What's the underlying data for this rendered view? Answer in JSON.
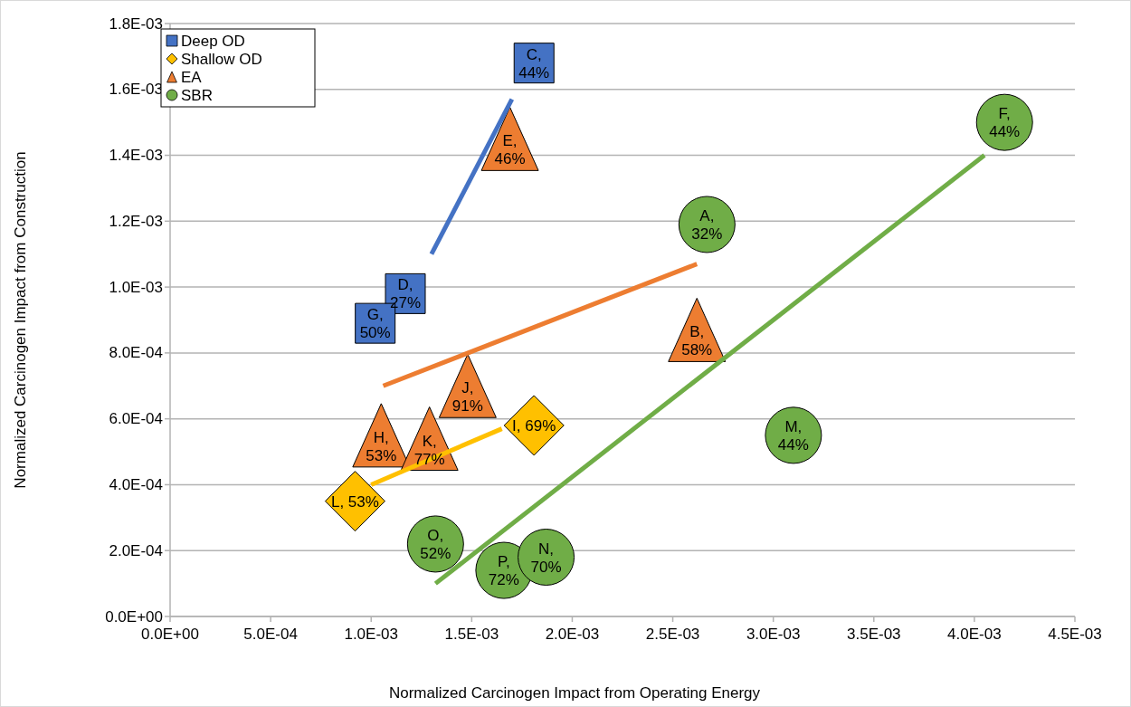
{
  "chart_data": {
    "type": "scatter",
    "xlabel": "Normalized Carcinogen Impact from Operating Energy",
    "ylabel": "Normalized Carcinogen Impact from Construction",
    "xlim": [
      0,
      0.0045
    ],
    "ylim": [
      0,
      0.0018
    ],
    "xticks": [
      {
        "value": 0,
        "label": "0.0E+00"
      },
      {
        "value": 0.0005,
        "label": "5.0E-04"
      },
      {
        "value": 0.001,
        "label": "1.0E-03"
      },
      {
        "value": 0.0015,
        "label": "1.5E-03"
      },
      {
        "value": 0.002,
        "label": "2.0E-03"
      },
      {
        "value": 0.0025,
        "label": "2.5E-03"
      },
      {
        "value": 0.003,
        "label": "3.0E-03"
      },
      {
        "value": 0.0035,
        "label": "3.5E-03"
      },
      {
        "value": 0.004,
        "label": "4.0E-03"
      },
      {
        "value": 0.0045,
        "label": "4.5E-03"
      }
    ],
    "yticks": [
      {
        "value": 0,
        "label": "0.0E+00"
      },
      {
        "value": 0.0002,
        "label": "2.0E-04"
      },
      {
        "value": 0.0004,
        "label": "4.0E-04"
      },
      {
        "value": 0.0006,
        "label": "6.0E-04"
      },
      {
        "value": 0.0008,
        "label": "8.0E-04"
      },
      {
        "value": 0.001,
        "label": "1.0E-03"
      },
      {
        "value": 0.0012,
        "label": "1.2E-03"
      },
      {
        "value": 0.0014,
        "label": "1.4E-03"
      },
      {
        "value": 0.0016,
        "label": "1.6E-03"
      },
      {
        "value": 0.0018,
        "label": "1.8E-03"
      }
    ],
    "grid": "y",
    "legend": "top left",
    "series": [
      {
        "type": "line",
        "color": "#4472c4",
        "x": [
          0.0013,
          0.0017
        ],
        "values": [
          0.0011,
          0.00157
        ]
      },
      {
        "type": "line",
        "color": "#ed7d31",
        "x": [
          0.00106,
          0.00262
        ],
        "values": [
          0.0007,
          0.00107
        ]
      },
      {
        "type": "line",
        "color": "#ffc000",
        "x": [
          0.001,
          0.00165
        ],
        "values": [
          0.0004,
          0.00057
        ]
      },
      {
        "type": "line",
        "color": "#70ad47",
        "x": [
          0.00132,
          0.00405
        ],
        "values": [
          0.0001,
          0.0014
        ]
      },
      {
        "name": "Deep OD",
        "marker": "square",
        "color": "#4472c4",
        "x": [
          0.00181,
          0.00117,
          0.00102
        ],
        "values": [
          0.00168,
          0.00098,
          0.00089
        ]
      },
      {
        "name": "Shallow OD",
        "marker": "diamond",
        "color": "#ffc000",
        "x": [
          0.00181,
          0.00092
        ],
        "values": [
          0.00058,
          0.00035
        ]
      },
      {
        "name": "EA",
        "marker": "triangle",
        "color": "#ed7d31",
        "x": [
          0.00169,
          0.00262,
          0.00148,
          0.00105,
          0.00129
        ],
        "values": [
          0.00145,
          0.00087,
          0.0007,
          0.00055,
          0.00054
        ]
      },
      {
        "name": "SBR",
        "marker": "circle",
        "color": "#70ad47",
        "x": [
          0.00415,
          0.00267,
          0.0031,
          0.00132,
          0.00166,
          0.00187
        ],
        "values": [
          0.0015,
          0.00119,
          0.00055,
          0.00022,
          0.00014,
          0.00018
        ]
      }
    ],
    "annotations": [
      {
        "text": "C,\n44%",
        "x": 0.00181,
        "y": 0.00168
      },
      {
        "text": "D,\n27%",
        "x": 0.00117,
        "y": 0.00098
      },
      {
        "text": "G,\n50%",
        "x": 0.00102,
        "y": 0.00089
      },
      {
        "text": "I, 69%",
        "x": 0.00181,
        "y": 0.00058
      },
      {
        "text": "L, 53%",
        "x": 0.00092,
        "y": 0.00035
      },
      {
        "text": "E,\n46%",
        "x": 0.00169,
        "y": 0.00145
      },
      {
        "text": "B,\n58%",
        "x": 0.00262,
        "y": 0.00087
      },
      {
        "text": "J,\n91%",
        "x": 0.00148,
        "y": 0.0007
      },
      {
        "text": "H,\n53%",
        "x": 0.00105,
        "y": 0.00055
      },
      {
        "text": "K,\n77%",
        "x": 0.00129,
        "y": 0.00054
      },
      {
        "text": "F,\n44%",
        "x": 0.00415,
        "y": 0.0015
      },
      {
        "text": "A,\n32%",
        "x": 0.00267,
        "y": 0.00119
      },
      {
        "text": "M,\n44%",
        "x": 0.0031,
        "y": 0.00055
      },
      {
        "text": "O,\n52%",
        "x": 0.00132,
        "y": 0.00022
      },
      {
        "text": "P,\n72%",
        "x": 0.00166,
        "y": 0.00014
      },
      {
        "text": "N,\n70%",
        "x": 0.00187,
        "y": 0.00018
      }
    ]
  }
}
